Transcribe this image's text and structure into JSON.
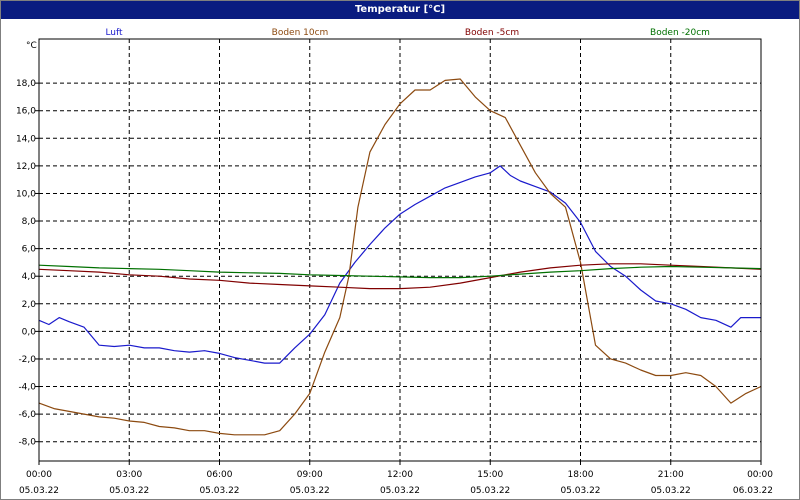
{
  "chart_data": {
    "type": "line",
    "title": "Temperatur [°C]",
    "y_unit": "°C",
    "ylim": [
      -9.4,
      21.2
    ],
    "y_ticks": [
      "-8,0",
      "-6,0",
      "-4,0",
      "-2,0",
      "0,0",
      "2,0",
      "4,0",
      "6,0",
      "8,0",
      "10,0",
      "12,0",
      "14,0",
      "16,0",
      "18,0"
    ],
    "y_tick_values": [
      -8,
      -6,
      -4,
      -2,
      0,
      2,
      4,
      6,
      8,
      10,
      12,
      14,
      16,
      18
    ],
    "xlim": [
      0,
      24
    ],
    "x_ticks": [
      {
        "time": "00:00",
        "date": "05.03.22"
      },
      {
        "time": "03:00",
        "date": "05.03.22"
      },
      {
        "time": "06:00",
        "date": "05.03.22"
      },
      {
        "time": "09:00",
        "date": "05.03.22"
      },
      {
        "time": "12:00",
        "date": "05.03.22"
      },
      {
        "time": "15:00",
        "date": "05.03.22"
      },
      {
        "time": "18:00",
        "date": "05.03.22"
      },
      {
        "time": "21:00",
        "date": "05.03.22"
      },
      {
        "time": "00:00",
        "date": "06.03.22"
      }
    ],
    "grid": true,
    "legend_position": "top",
    "series": [
      {
        "name": "Luft",
        "color": "#1a1acc",
        "x": [
          0,
          0.33,
          0.67,
          1,
          1.5,
          2,
          2.5,
          3,
          3.5,
          4,
          4.5,
          5,
          5.5,
          6,
          6.5,
          7,
          7.5,
          8,
          8.5,
          9,
          9.5,
          10,
          10.5,
          11,
          11.5,
          12,
          12.5,
          13,
          13.5,
          14,
          14.5,
          15,
          15.33,
          15.67,
          16,
          16.5,
          17,
          17.5,
          18,
          18.5,
          19,
          19.5,
          20,
          20.5,
          21,
          21.5,
          22,
          22.5,
          23,
          23.33,
          23.67,
          24
        ],
        "values": [
          0.8,
          0.5,
          1.0,
          0.7,
          0.3,
          -1.0,
          -1.1,
          -1.0,
          -1.2,
          -1.2,
          -1.4,
          -1.5,
          -1.4,
          -1.6,
          -1.9,
          -2.1,
          -2.3,
          -2.3,
          -1.2,
          -0.2,
          1.2,
          3.5,
          5.0,
          6.3,
          7.5,
          8.5,
          9.2,
          9.8,
          10.4,
          10.8,
          11.2,
          11.5,
          12.0,
          11.3,
          10.9,
          10.5,
          10.1,
          9.3,
          7.9,
          5.8,
          4.7,
          4.0,
          3.0,
          2.2,
          2.0,
          1.6,
          1.0,
          0.8,
          0.3,
          1.0,
          1.0,
          1.0
        ]
      },
      {
        "name": "Boden 10cm",
        "color": "#8c4a10",
        "x": [
          0,
          0.5,
          1,
          1.5,
          2,
          2.5,
          3,
          3.5,
          4,
          4.5,
          5,
          5.5,
          6,
          6.5,
          7,
          7.5,
          8,
          8.5,
          9,
          9.5,
          10,
          10.3,
          10.6,
          11,
          11.5,
          12,
          12.5,
          13,
          13.5,
          14,
          14.5,
          15,
          15.5,
          16,
          16.5,
          17,
          17.5,
          18,
          18.5,
          19,
          19.5,
          20,
          20.5,
          21,
          21.5,
          22,
          22.5,
          23,
          23.5,
          24
        ],
        "values": [
          -5.2,
          -5.6,
          -5.8,
          -6.0,
          -6.2,
          -6.3,
          -6.5,
          -6.6,
          -6.9,
          -7.0,
          -7.2,
          -7.2,
          -7.4,
          -7.5,
          -7.5,
          -7.5,
          -7.2,
          -6.0,
          -4.5,
          -1.5,
          1.0,
          4.0,
          9.0,
          13.0,
          15.0,
          16.5,
          17.5,
          17.5,
          18.2,
          18.3,
          17.0,
          16.0,
          15.5,
          13.5,
          11.5,
          10.0,
          9.0,
          5.0,
          -1.0,
          -2.0,
          -2.3,
          -2.8,
          -3.2,
          -3.2,
          -3.0,
          -3.2,
          -4.0,
          -5.2,
          -4.5,
          -4.0
        ]
      },
      {
        "name": "Boden -5cm",
        "color": "#800000",
        "x": [
          0,
          1,
          2,
          3,
          4,
          5,
          6,
          7,
          8,
          9,
          10,
          11,
          12,
          13,
          14,
          15,
          16,
          17,
          18,
          19,
          20,
          21,
          22,
          23,
          24
        ],
        "values": [
          4.5,
          4.4,
          4.3,
          4.1,
          4.0,
          3.8,
          3.7,
          3.5,
          3.4,
          3.3,
          3.2,
          3.1,
          3.1,
          3.2,
          3.5,
          3.9,
          4.3,
          4.6,
          4.8,
          4.9,
          4.9,
          4.8,
          4.7,
          4.6,
          4.5
        ]
      },
      {
        "name": "Boden -20cm",
        "color": "#007000",
        "x": [
          0,
          1,
          2,
          3,
          4,
          5,
          6,
          7,
          8,
          9,
          10,
          11,
          12,
          13,
          14,
          15,
          16,
          17,
          18,
          19,
          20,
          21,
          22,
          23,
          24
        ],
        "values": [
          4.8,
          4.7,
          4.6,
          4.55,
          4.5,
          4.4,
          4.3,
          4.25,
          4.2,
          4.1,
          4.05,
          4.0,
          3.95,
          3.9,
          3.9,
          4.0,
          4.15,
          4.3,
          4.4,
          4.55,
          4.65,
          4.7,
          4.65,
          4.6,
          4.55
        ]
      }
    ]
  }
}
